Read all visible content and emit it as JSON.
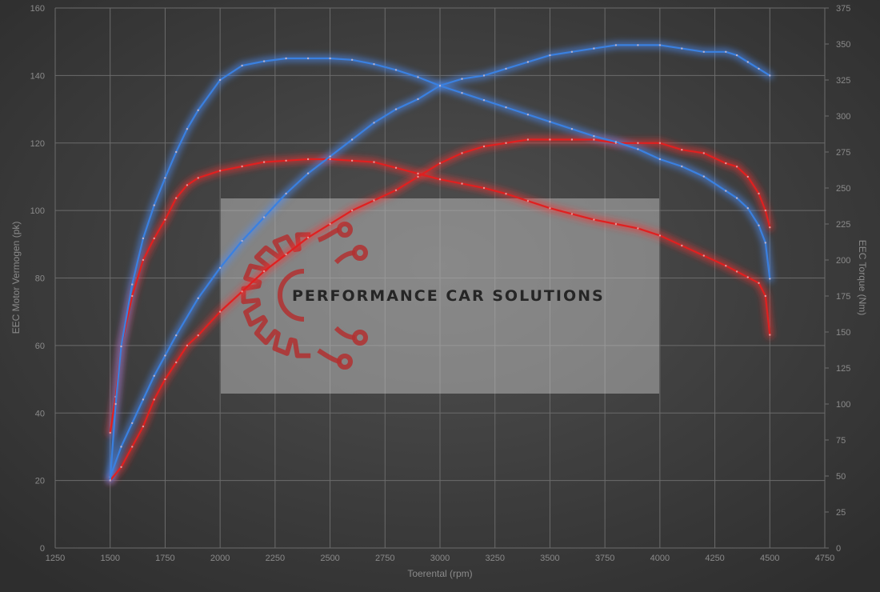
{
  "chart_data": {
    "type": "line",
    "xlabel": "Toerental (rpm)",
    "ylabel_left": "EEC Motor Vermogen (pk)",
    "ylabel_right": "EEC Torque (Nm)",
    "xlim": [
      1250,
      4750
    ],
    "ylim_left": [
      0,
      160
    ],
    "ylim_right": [
      0,
      375
    ],
    "x_ticks": [
      1250,
      1500,
      1750,
      2000,
      2250,
      2500,
      2750,
      3000,
      3250,
      3500,
      3750,
      4000,
      4250,
      4500,
      4750
    ],
    "y_left_ticks": [
      0,
      20,
      40,
      60,
      80,
      100,
      120,
      140,
      160
    ],
    "y_right_ticks": [
      0,
      25,
      50,
      75,
      100,
      125,
      150,
      175,
      200,
      225,
      250,
      275,
      300,
      325,
      350,
      375
    ],
    "grid": true,
    "series": [
      {
        "axis": "left",
        "color": "#e02020",
        "glow": "#ff3030",
        "points": [
          [
            1500,
            20
          ],
          [
            1550,
            24
          ],
          [
            1600,
            30
          ],
          [
            1650,
            36
          ],
          [
            1700,
            44
          ],
          [
            1750,
            50
          ],
          [
            1800,
            55
          ],
          [
            1850,
            60
          ],
          [
            1900,
            63
          ],
          [
            2000,
            70
          ],
          [
            2100,
            76
          ],
          [
            2200,
            82
          ],
          [
            2300,
            87
          ],
          [
            2400,
            92
          ],
          [
            2500,
            96
          ],
          [
            2600,
            100
          ],
          [
            2700,
            103
          ],
          [
            2800,
            106
          ],
          [
            2900,
            110
          ],
          [
            3000,
            114
          ],
          [
            3100,
            117
          ],
          [
            3200,
            119
          ],
          [
            3300,
            120
          ],
          [
            3400,
            121
          ],
          [
            3500,
            121
          ],
          [
            3600,
            121
          ],
          [
            3700,
            121
          ],
          [
            3800,
            120
          ],
          [
            3900,
            120
          ],
          [
            4000,
            120
          ],
          [
            4100,
            118
          ],
          [
            4200,
            117
          ],
          [
            4300,
            114
          ],
          [
            4350,
            113
          ],
          [
            4400,
            110
          ],
          [
            4450,
            105
          ],
          [
            4480,
            100
          ],
          [
            4500,
            95
          ]
        ]
      },
      {
        "axis": "right",
        "color": "#e02020",
        "glow": "#ff3030",
        "points": [
          [
            1500,
            80
          ],
          [
            1525,
            105
          ],
          [
            1550,
            140
          ],
          [
            1600,
            175
          ],
          [
            1650,
            200
          ],
          [
            1700,
            215
          ],
          [
            1750,
            228
          ],
          [
            1800,
            243
          ],
          [
            1850,
            252
          ],
          [
            1900,
            257
          ],
          [
            2000,
            262
          ],
          [
            2100,
            265
          ],
          [
            2200,
            268
          ],
          [
            2300,
            269
          ],
          [
            2400,
            270
          ],
          [
            2500,
            270
          ],
          [
            2600,
            269
          ],
          [
            2700,
            268
          ],
          [
            2800,
            264
          ],
          [
            2900,
            260
          ],
          [
            3000,
            256
          ],
          [
            3100,
            253
          ],
          [
            3200,
            250
          ],
          [
            3300,
            246
          ],
          [
            3400,
            241
          ],
          [
            3500,
            236
          ],
          [
            3600,
            232
          ],
          [
            3700,
            228
          ],
          [
            3800,
            225
          ],
          [
            3900,
            222
          ],
          [
            4000,
            217
          ],
          [
            4100,
            210
          ],
          [
            4200,
            203
          ],
          [
            4300,
            196
          ],
          [
            4350,
            192
          ],
          [
            4400,
            188
          ],
          [
            4450,
            184
          ],
          [
            4480,
            175
          ],
          [
            4500,
            148
          ]
        ]
      },
      {
        "axis": "left",
        "color": "#3a80e0",
        "glow": "#4a90ff",
        "points": [
          [
            1500,
            21
          ],
          [
            1550,
            30
          ],
          [
            1600,
            37
          ],
          [
            1650,
            44
          ],
          [
            1700,
            51
          ],
          [
            1750,
            57
          ],
          [
            1800,
            63
          ],
          [
            1900,
            74
          ],
          [
            2000,
            83
          ],
          [
            2100,
            91
          ],
          [
            2200,
            98
          ],
          [
            2300,
            105
          ],
          [
            2400,
            111
          ],
          [
            2500,
            116
          ],
          [
            2600,
            121
          ],
          [
            2700,
            126
          ],
          [
            2800,
            130
          ],
          [
            2900,
            133
          ],
          [
            3000,
            137
          ],
          [
            3100,
            139
          ],
          [
            3200,
            140
          ],
          [
            3300,
            142
          ],
          [
            3400,
            144
          ],
          [
            3500,
            146
          ],
          [
            3600,
            147
          ],
          [
            3700,
            148
          ],
          [
            3800,
            149
          ],
          [
            3900,
            149
          ],
          [
            4000,
            149
          ],
          [
            4100,
            148
          ],
          [
            4200,
            147
          ],
          [
            4300,
            147
          ],
          [
            4350,
            146
          ],
          [
            4400,
            144
          ],
          [
            4450,
            142
          ],
          [
            4500,
            140
          ]
        ]
      },
      {
        "axis": "right",
        "color": "#3a80e0",
        "glow": "#4a90ff",
        "points": [
          [
            1500,
            47
          ],
          [
            1525,
            100
          ],
          [
            1550,
            140
          ],
          [
            1600,
            183
          ],
          [
            1650,
            215
          ],
          [
            1700,
            238
          ],
          [
            1750,
            257
          ],
          [
            1800,
            275
          ],
          [
            1850,
            291
          ],
          [
            1900,
            304
          ],
          [
            2000,
            325
          ],
          [
            2100,
            335
          ],
          [
            2200,
            338
          ],
          [
            2300,
            340
          ],
          [
            2400,
            340
          ],
          [
            2500,
            340
          ],
          [
            2600,
            339
          ],
          [
            2700,
            336
          ],
          [
            2800,
            332
          ],
          [
            2900,
            327
          ],
          [
            3000,
            321
          ],
          [
            3100,
            316
          ],
          [
            3200,
            311
          ],
          [
            3300,
            306
          ],
          [
            3400,
            301
          ],
          [
            3500,
            296
          ],
          [
            3600,
            291
          ],
          [
            3700,
            286
          ],
          [
            3800,
            282
          ],
          [
            3900,
            277
          ],
          [
            4000,
            270
          ],
          [
            4100,
            265
          ],
          [
            4200,
            258
          ],
          [
            4300,
            248
          ],
          [
            4350,
            243
          ],
          [
            4400,
            236
          ],
          [
            4450,
            224
          ],
          [
            4480,
            212
          ],
          [
            4500,
            187
          ]
        ]
      }
    ]
  },
  "watermark": {
    "text": "PERFORMANCE CAR SOLUTIONS",
    "icon": "gear-circuit-logo",
    "logo_color": "#b23030"
  }
}
